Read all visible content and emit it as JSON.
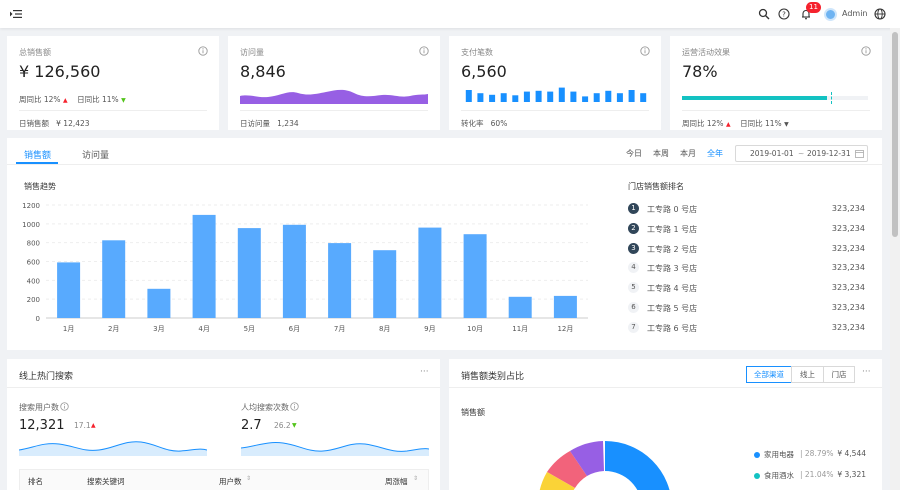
{
  "header": {
    "notification_count": "11",
    "user_name": "Admin"
  },
  "kpis": {
    "total_sales": {
      "title": "总销售额",
      "value": "¥ 126,560",
      "weekly_label": "周同比",
      "weekly_value": "12%",
      "daily_label": "日同比",
      "daily_value": "11%",
      "footer_label": "日销售额",
      "footer_value": "¥ 12,423"
    },
    "visits": {
      "title": "访问量",
      "value": "8,846",
      "footer_label": "日访问量",
      "footer_value": "1,234"
    },
    "payments": {
      "title": "支付笔数",
      "value": "6,560",
      "footer_label": "转化率",
      "footer_value": "60%",
      "bars": [
        0.75,
        0.55,
        0.45,
        0.55,
        0.42,
        0.65,
        0.7,
        0.65,
        0.9,
        0.65,
        0.35,
        0.55,
        0.7,
        0.55,
        0.75,
        0.55
      ]
    },
    "campaign": {
      "title": "运营活动效果",
      "value": "78%",
      "progress": 0.78,
      "weekly_label": "周同比",
      "weekly_value": "12%",
      "daily_label": "日同比",
      "daily_value": "11%"
    }
  },
  "sales_tabs": {
    "tab1": "销售额",
    "tab2": "访问量"
  },
  "ranges": {
    "today": "今日",
    "week": "本周",
    "month": "本月",
    "year": "全年"
  },
  "date_range": {
    "start": "2019-01-01",
    "sep": "~",
    "end": "2019-12-31"
  },
  "chart_data": {
    "type": "bar",
    "title": "销售趋势",
    "categories": [
      "1月",
      "2月",
      "3月",
      "4月",
      "5月",
      "6月",
      "7月",
      "8月",
      "9月",
      "10月",
      "11月",
      "12月"
    ],
    "values": [
      590,
      825,
      310,
      1095,
      955,
      990,
      795,
      720,
      960,
      890,
      225,
      235
    ],
    "ylim": [
      0,
      1200
    ],
    "yticks": [
      "0",
      "200",
      "400",
      "600",
      "800",
      "1000",
      "1200"
    ],
    "grid": true,
    "color": "#58aafe"
  },
  "ranking": {
    "title": "门店销售额排名",
    "items": [
      {
        "rank": "1",
        "name": "工专路 0 号店",
        "value": "323,234"
      },
      {
        "rank": "2",
        "name": "工专路 1 号店",
        "value": "323,234"
      },
      {
        "rank": "3",
        "name": "工专路 2 号店",
        "value": "323,234"
      },
      {
        "rank": "4",
        "name": "工专路 3 号店",
        "value": "323,234"
      },
      {
        "rank": "5",
        "name": "工专路 4 号店",
        "value": "323,234"
      },
      {
        "rank": "6",
        "name": "工专路 5 号店",
        "value": "323,234"
      },
      {
        "rank": "7",
        "name": "工专路 6 号店",
        "value": "323,234"
      }
    ]
  },
  "search_panel": {
    "title": "线上热门搜索",
    "more": "···",
    "users_label": "搜索用户数",
    "users_value": "12,321",
    "users_change": "17.1",
    "avg_label": "人均搜索次数",
    "avg_value": "2.7",
    "avg_change": "26.2",
    "table_headers": [
      "排名",
      "搜索关键词",
      "用户数",
      "周涨幅"
    ]
  },
  "category_panel": {
    "title": "销售额类别占比",
    "more": "···",
    "segments": [
      "全部渠道",
      "线上",
      "门店"
    ],
    "subtitle": "销售额",
    "legend": [
      {
        "name": "家用电器",
        "percent": "28.79%",
        "value": "¥ 4,544",
        "color": "#1890ff"
      },
      {
        "name": "食用酒水",
        "percent": "21.04%",
        "value": "¥ 3,321",
        "color": "#13c2c2"
      }
    ],
    "donut_colors": [
      "#1890ff",
      "#13c2c2",
      "#2fc25b",
      "#fad337",
      "#f2637b",
      "#975fe4"
    ]
  }
}
